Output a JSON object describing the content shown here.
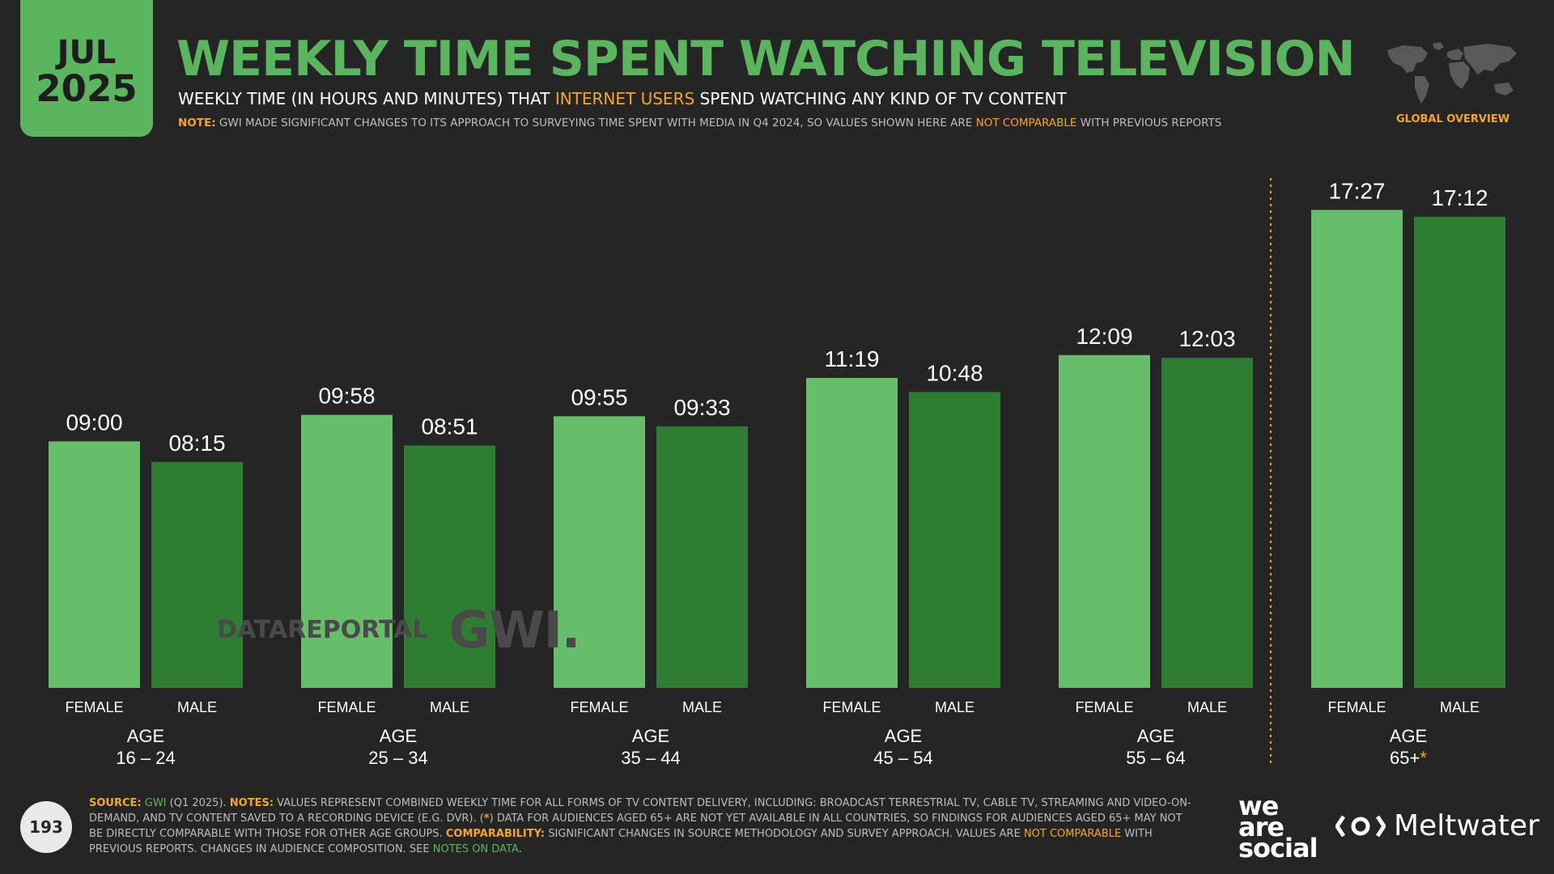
{
  "badge": {
    "month": "JUL",
    "year": "2025"
  },
  "header": {
    "title": "WEEKLY TIME SPENT WATCHING TELEVISION",
    "subtitle_pre": "WEEKLY TIME (IN HOURS AND MINUTES) THAT ",
    "subtitle_highlight": "INTERNET USERS",
    "subtitle_post": " SPEND WATCHING ANY KIND OF TV CONTENT",
    "note_label": "NOTE:",
    "note_text": " GWI MADE SIGNIFICANT CHANGES TO ITS APPROACH TO SURVEYING TIME SPENT WITH MEDIA IN Q4 2024, SO VALUES SHOWN HERE ARE ",
    "note_highlight": "NOT COMPARABLE",
    "note_post": " WITH PREVIOUS REPORTS",
    "region": "GLOBAL OVERVIEW"
  },
  "colors": {
    "female": "#66bd6a",
    "male": "#2e7d32",
    "accent": "#5bb55e",
    "highlight": "#f7a623",
    "background": "#252525"
  },
  "chart_data": {
    "type": "bar",
    "categories": [
      "16 – 24",
      "25 – 34",
      "35 – 44",
      "45 – 54",
      "55 – 64",
      "65+"
    ],
    "category_prefix": "AGE",
    "category_marker": "*",
    "unit": "hours:minutes per week",
    "ylim": [
      0,
      19.5
    ],
    "grid": false,
    "series": [
      {
        "name": "FEMALE",
        "values": [
          "09:00",
          "09:58",
          "09:55",
          "11:19",
          "12:09",
          "17:27"
        ]
      },
      {
        "name": "MALE",
        "values": [
          "08:15",
          "08:51",
          "09:33",
          "10:48",
          "12:03",
          "17:12"
        ]
      }
    ]
  },
  "watermark": {
    "datareportal": "DATAREPORTAL",
    "gwi": "GWI."
  },
  "footer": {
    "page_number": "193",
    "source_label": "SOURCE:",
    "source_name": "GWI",
    "source_period": " (Q1 2025). ",
    "notes_label": "NOTES:",
    "notes_text": " VALUES REPRESENT COMBINED WEEKLY TIME FOR ALL FORMS OF TV CONTENT DELIVERY, INCLUDING: BROADCAST TERRESTRIAL TV, CABLE TV, STREAMING AND VIDEO-ON-DEMAND, AND TV CONTENT SAVED TO A RECORDING DEVICE (E.G. DVR). (",
    "notes_star": "*",
    "notes_text2": ") DATA FOR AUDIENCES AGED 65+ ARE NOT YET AVAILABLE IN ALL COUNTRIES, SO FINDINGS FOR AUDIENCES AGED 65+ MAY NOT BE DIRECTLY COMPARABLE WITH THOSE FOR OTHER AGE GROUPS. ",
    "comparability_label": "COMPARABILITY:",
    "comparability_text": " SIGNIFICANT CHANGES IN SOURCE METHODOLOGY AND SURVEY APPROACH. VALUES ARE ",
    "comparability_highlight": "NOT COMPARABLE",
    "comparability_post": " WITH PREVIOUS REPORTS. CHANGES IN AUDIENCE COMPOSITION. SEE ",
    "notes_link": "NOTES ON DATA",
    "end": "."
  },
  "brands": {
    "was_line1": "we",
    "was_line2": "are",
    "was_line3": "social",
    "meltwater": "Meltwater"
  }
}
